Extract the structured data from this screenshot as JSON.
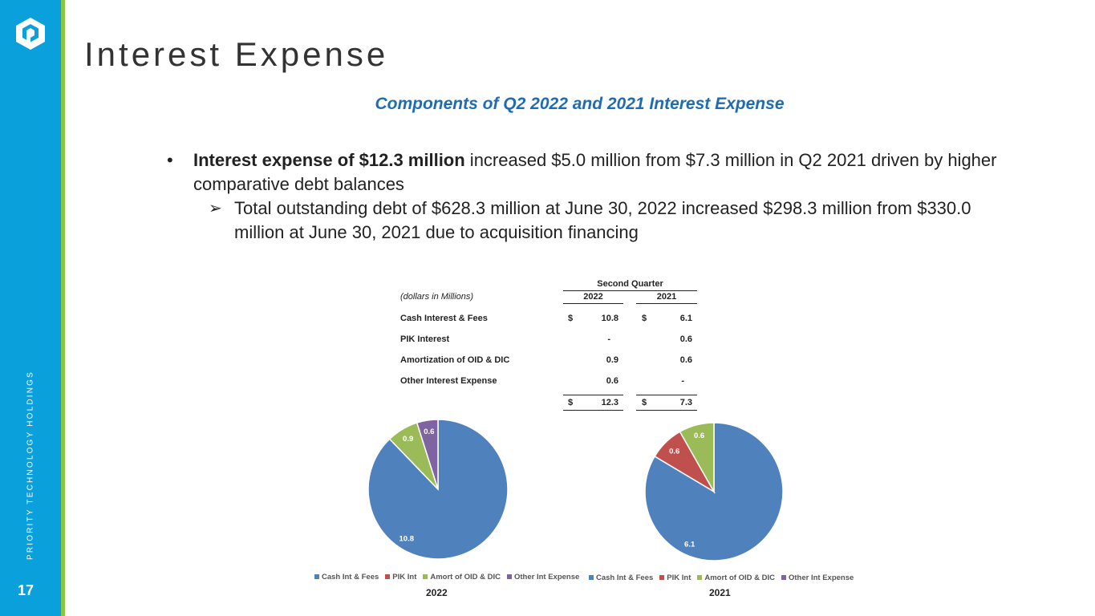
{
  "sidebar": {
    "company_vertical": "PRIORITY TECHNOLOGY HOLDINGS",
    "page_number": "17",
    "colors": {
      "blue": "#0aa0dc",
      "green": "#8cc63f"
    }
  },
  "title": "Interest Expense",
  "subtitle": "Components of Q2 2022 and 2021 Interest Expense",
  "bullets": {
    "b1_bold": "Interest expense of $12.3 million",
    "b1_rest": " increased $5.0 million from $7.3 million in Q2 2021 driven by higher comparative debt balances",
    "b2": "Total outstanding debt of $628.3 million at June 30, 2022 increased $298.3 million from $330.0 million at June 30, 2021 due to acquisition financing"
  },
  "table": {
    "group_header": "Second Quarter",
    "units_note": "(dollars in Millions)",
    "col_2022": "2022",
    "col_2021": "2021",
    "currency": "$",
    "rows": [
      {
        "label": "Cash Interest & Fees",
        "v2022": "10.8",
        "v2021": "6.1"
      },
      {
        "label": "PIK Interest",
        "v2022": "-",
        "v2021": "0.6"
      },
      {
        "label": "Amortization of OID & DIC",
        "v2022": "0.9",
        "v2021": "0.6"
      },
      {
        "label": "Other Interest Expense",
        "v2022": "0.6",
        "v2021": "-"
      }
    ],
    "total": {
      "v2022": "12.3",
      "v2021": "7.3"
    }
  },
  "chart_data": [
    {
      "type": "pie",
      "title": "2022",
      "categories": [
        "Cash Int & Fees",
        "PIK Int",
        "Amort of OID & DIC",
        "Other Int Expense"
      ],
      "values": [
        10.8,
        0,
        0.9,
        0.6
      ],
      "labels": [
        "10.8",
        "",
        "0.9",
        "0.6"
      ],
      "colors": [
        "#4f81bd",
        "#c0504d",
        "#9bbb59",
        "#8064a2"
      ],
      "legend": "bottom"
    },
    {
      "type": "pie",
      "title": "2021",
      "categories": [
        "Cash Int & Fees",
        "PIK Int",
        "Amort of OID & DIC",
        "Other Int Expense"
      ],
      "values": [
        6.1,
        0.6,
        0.6,
        0
      ],
      "labels": [
        "6.1",
        "0.6",
        "0.6",
        ""
      ],
      "colors": [
        "#4f81bd",
        "#c0504d",
        "#9bbb59",
        "#8064a2"
      ],
      "legend": "bottom"
    }
  ]
}
